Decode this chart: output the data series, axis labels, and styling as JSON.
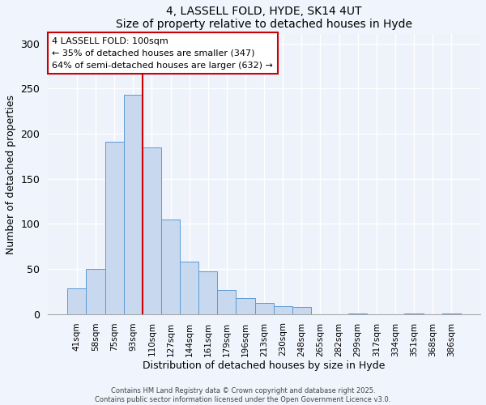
{
  "title1": "4, LASSELL FOLD, HYDE, SK14 4UT",
  "title2": "Size of property relative to detached houses in Hyde",
  "xlabel": "Distribution of detached houses by size in Hyde",
  "ylabel": "Number of detached properties",
  "categories": [
    "41sqm",
    "58sqm",
    "75sqm",
    "93sqm",
    "110sqm",
    "127sqm",
    "144sqm",
    "161sqm",
    "179sqm",
    "196sqm",
    "213sqm",
    "230sqm",
    "248sqm",
    "265sqm",
    "282sqm",
    "299sqm",
    "317sqm",
    "334sqm",
    "351sqm",
    "368sqm",
    "386sqm"
  ],
  "values": [
    28,
    50,
    191,
    243,
    185,
    105,
    58,
    47,
    27,
    18,
    12,
    9,
    8,
    0,
    0,
    1,
    0,
    0,
    1,
    0,
    1
  ],
  "bar_color": "#c8d8ee",
  "bar_edge_color": "#5b9bd5",
  "vline_x_index": 3.5,
  "vline_color": "#cc0000",
  "annotation_text": "4 LASSELL FOLD: 100sqm\n← 35% of detached houses are smaller (347)\n64% of semi-detached houses are larger (632) →",
  "annotation_box_color": "#ffffff",
  "annotation_box_edge": "#cc0000",
  "ylim": [
    0,
    310
  ],
  "yticks": [
    0,
    50,
    100,
    150,
    200,
    250,
    300
  ],
  "footer1": "Contains HM Land Registry data © Crown copyright and database right 2025.",
  "footer2": "Contains public sector information licensed under the Open Government Licence v3.0.",
  "bg_color": "#f0f4fc",
  "plot_bg_color": "#eef2fa",
  "grid_color": "#ffffff",
  "spine_color": "#aaaaaa"
}
